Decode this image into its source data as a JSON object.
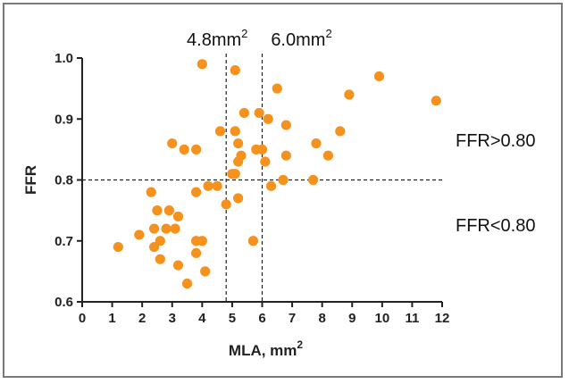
{
  "chart_data": {
    "type": "scatter",
    "title": "",
    "xlabel": "MLA, mm",
    "xlabel_sup": "2",
    "ylabel": "FFR",
    "xlim": [
      0,
      12
    ],
    "ylim": [
      0.6,
      1.0
    ],
    "xticks": [
      "0",
      "1",
      "2",
      "3",
      "4",
      "5",
      "6",
      "7",
      "8",
      "9",
      "10",
      "11",
      "12"
    ],
    "yticks": [
      "0.6",
      "0.7",
      "0.8",
      "0.9",
      "1.0"
    ],
    "grid": false,
    "marker_color": "#F5921E",
    "reference_lines": {
      "vertical": [
        {
          "x": 4.8,
          "label": "4.8mm",
          "sup": "2"
        },
        {
          "x": 6.0,
          "label": "6.0mm",
          "sup": "2"
        }
      ],
      "horizontal": [
        {
          "y": 0.8
        }
      ]
    },
    "annotations": [
      {
        "text": "FFR>0.80"
      },
      {
        "text": "FFR<0.80"
      }
    ],
    "points": [
      {
        "x": 1.2,
        "y": 0.69
      },
      {
        "x": 1.9,
        "y": 0.71
      },
      {
        "x": 2.3,
        "y": 0.78
      },
      {
        "x": 2.4,
        "y": 0.72
      },
      {
        "x": 2.4,
        "y": 0.69
      },
      {
        "x": 2.5,
        "y": 0.75
      },
      {
        "x": 2.6,
        "y": 0.7
      },
      {
        "x": 2.6,
        "y": 0.67
      },
      {
        "x": 2.8,
        "y": 0.72
      },
      {
        "x": 2.9,
        "y": 0.75
      },
      {
        "x": 3.0,
        "y": 0.86
      },
      {
        "x": 3.1,
        "y": 0.72
      },
      {
        "x": 3.2,
        "y": 0.74
      },
      {
        "x": 3.2,
        "y": 0.66
      },
      {
        "x": 3.4,
        "y": 0.85
      },
      {
        "x": 3.5,
        "y": 0.63
      },
      {
        "x": 3.8,
        "y": 0.85
      },
      {
        "x": 3.8,
        "y": 0.78
      },
      {
        "x": 3.8,
        "y": 0.7
      },
      {
        "x": 3.8,
        "y": 0.68
      },
      {
        "x": 4.0,
        "y": 0.99
      },
      {
        "x": 4.0,
        "y": 0.7
      },
      {
        "x": 4.1,
        "y": 0.65
      },
      {
        "x": 4.2,
        "y": 0.79
      },
      {
        "x": 4.5,
        "y": 0.79
      },
      {
        "x": 4.6,
        "y": 0.88
      },
      {
        "x": 4.8,
        "y": 0.76
      },
      {
        "x": 5.0,
        "y": 0.81
      },
      {
        "x": 5.1,
        "y": 0.98
      },
      {
        "x": 5.1,
        "y": 0.88
      },
      {
        "x": 5.1,
        "y": 0.81
      },
      {
        "x": 5.2,
        "y": 0.86
      },
      {
        "x": 5.2,
        "y": 0.83
      },
      {
        "x": 5.2,
        "y": 0.77
      },
      {
        "x": 5.3,
        "y": 0.84
      },
      {
        "x": 5.4,
        "y": 0.91
      },
      {
        "x": 5.7,
        "y": 0.7
      },
      {
        "x": 5.8,
        "y": 0.85
      },
      {
        "x": 5.9,
        "y": 0.91
      },
      {
        "x": 6.0,
        "y": 0.85
      },
      {
        "x": 6.1,
        "y": 0.83
      },
      {
        "x": 6.2,
        "y": 0.9
      },
      {
        "x": 6.3,
        "y": 0.79
      },
      {
        "x": 6.5,
        "y": 0.95
      },
      {
        "x": 6.7,
        "y": 0.8
      },
      {
        "x": 6.8,
        "y": 0.84
      },
      {
        "x": 6.8,
        "y": 0.89
      },
      {
        "x": 7.7,
        "y": 0.8
      },
      {
        "x": 7.8,
        "y": 0.86
      },
      {
        "x": 8.2,
        "y": 0.84
      },
      {
        "x": 8.6,
        "y": 0.88
      },
      {
        "x": 8.9,
        "y": 0.94
      },
      {
        "x": 9.9,
        "y": 0.97
      },
      {
        "x": 11.8,
        "y": 0.93
      }
    ]
  }
}
